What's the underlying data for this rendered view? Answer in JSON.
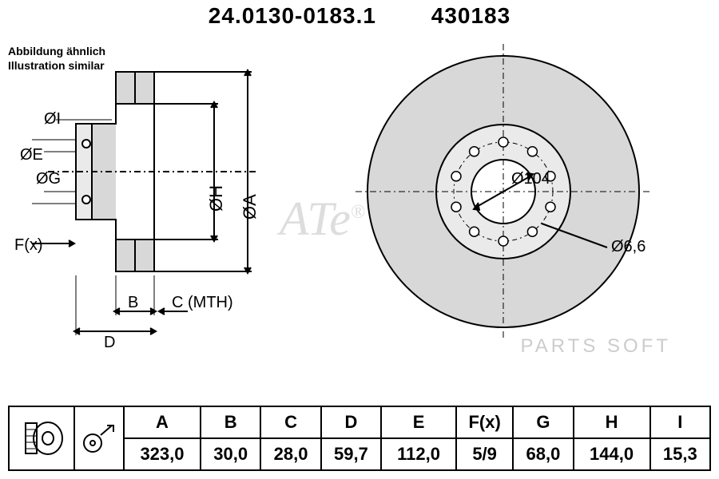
{
  "header": {
    "part_no_1": "24.0130-0183.1",
    "part_no_2": "430183"
  },
  "subtitle": {
    "line1": "Abbildung ähnlich",
    "line2": "Illustration similar"
  },
  "watermark": "PARTS SOFT",
  "front_view": {
    "outer_diameter_label": "ØA",
    "hub_face_label": "ØH",
    "bolt_circle_inner_text": "Ø104",
    "small_hole_label": "Ø6,6",
    "disc_color": "#d8d8d8",
    "hub_color": "#eaeaea",
    "line_color": "#000000",
    "bolt_holes": 10
  },
  "side_view": {
    "labels": {
      "oi": "ØI",
      "og": "ØG",
      "oe": "ØE",
      "oh": "ØH",
      "oa": "ØA",
      "fx": "F(x)",
      "b": "B",
      "d": "D",
      "cmth": "C (MTH)"
    },
    "disc_color": "#d8d8d8",
    "line_color": "#000000"
  },
  "table": {
    "headers": [
      "A",
      "B",
      "C",
      "D",
      "E",
      "F(x)",
      "G",
      "H",
      "I"
    ],
    "values": [
      "323,0",
      "30,0",
      "28,0",
      "59,7",
      "112,0",
      "5/9",
      "68,0",
      "144,0",
      "15,3"
    ]
  },
  "icons": {
    "thumbnail_desc": "disc-thumbnail",
    "surface_desc": "surface-icon"
  }
}
